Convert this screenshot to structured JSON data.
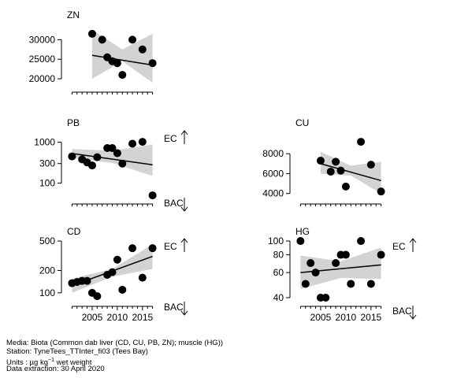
{
  "indicator_labels": {
    "ec": "EC",
    "bac": "BAC"
  },
  "footer": {
    "media": "Media: Biota (Common dab liver (CD, CU, PB, ZN); muscle (HG))",
    "station": "Station: TyneTees_TTInter_fi03 (Tees Bay)",
    "units_prefix": "Units : µg kg",
    "units_exp": "−1",
    "units_suffix": " wet weight",
    "extraction": "Data extraction: 30 April 2020"
  },
  "colors": {
    "marker": "#000000",
    "band": "#d3d3d3",
    "trend": "#000000"
  },
  "chart_data": [
    {
      "id": "zn",
      "type": "scatter",
      "title": "ZN",
      "x_range": [
        2000,
        2018
      ],
      "y_scale": "linear",
      "y_range": [
        18000,
        33500
      ],
      "y_ticks": [
        20000,
        25000,
        30000
      ],
      "y_tick_labels": [
        "20000",
        "25000",
        "30000"
      ],
      "x_ticks": [],
      "x_tick_labels": [],
      "indicators": [],
      "x": [
        2005,
        2007,
        2008,
        2009,
        2010,
        2011,
        2013,
        2015,
        2017
      ],
      "y": [
        31500,
        30000,
        25500,
        24500,
        24000,
        21000,
        30000,
        27500,
        24000
      ],
      "trend": {
        "x": [
          2005,
          2017
        ],
        "y": [
          26000,
          23500
        ]
      },
      "band": {
        "x": [
          2005,
          2011,
          2017
        ],
        "upper": [
          32500,
          27500,
          31500
        ],
        "lower": [
          20000,
          24500,
          19000
        ]
      }
    },
    {
      "id": "pb",
      "type": "scatter",
      "title": "PB",
      "x_range": [
        2000,
        2018
      ],
      "y_scale": "log",
      "y_range": [
        42,
        1600
      ],
      "y_ticks": [
        100,
        300,
        1000
      ],
      "y_tick_labels": [
        "100",
        "300",
        "1000"
      ],
      "x_ticks": [],
      "x_tick_labels": [],
      "indicators": [
        "EC",
        "BAC"
      ],
      "x": [
        2001,
        2003,
        2004,
        2005,
        2006,
        2008,
        2009,
        2010,
        2011,
        2013,
        2015,
        2017
      ],
      "y": [
        450,
        380,
        320,
        270,
        430,
        720,
        720,
        540,
        300,
        920,
        1020,
        50
      ],
      "trend": {
        "x": [
          2001,
          2017
        ],
        "y": [
          530,
          280
        ]
      },
      "band": {
        "x": [
          2001,
          2009,
          2017
        ],
        "upper": [
          680,
          620,
          880
        ],
        "lower": [
          410,
          310,
          150
        ]
      }
    },
    {
      "id": "cu",
      "type": "scatter",
      "title": "CU",
      "x_range": [
        2000,
        2018
      ],
      "y_scale": "linear",
      "y_range": [
        3500,
        10000
      ],
      "y_ticks": [
        4000,
        6000,
        8000
      ],
      "y_tick_labels": [
        "4000",
        "6000",
        "8000"
      ],
      "x_ticks": [],
      "x_tick_labels": [],
      "indicators": [],
      "x": [
        2005,
        2007,
        2008,
        2009,
        2010,
        2013,
        2015,
        2017
      ],
      "y": [
        7300,
        6200,
        7200,
        6300,
        4700,
        9200,
        6900,
        4200
      ],
      "trend": {
        "x": [
          2005,
          2017
        ],
        "y": [
          7000,
          5300
        ]
      },
      "band": {
        "x": [
          2005,
          2011,
          2017
        ],
        "upper": [
          8200,
          6800,
          7200
        ],
        "lower": [
          6000,
          5800,
          4000
        ]
      }
    },
    {
      "id": "cd",
      "type": "scatter",
      "title": "CD",
      "x_range": [
        2000,
        2018
      ],
      "y_scale": "log",
      "y_range": [
        78,
        580
      ],
      "y_ticks": [
        100,
        200,
        500
      ],
      "y_tick_labels": [
        "100",
        "200",
        "500"
      ],
      "x_ticks": [
        2005,
        2010,
        2015
      ],
      "x_tick_labels": [
        "2005",
        "2010",
        "2015"
      ],
      "indicators": [
        "EC",
        "BAC"
      ],
      "x": [
        2001,
        2002,
        2003,
        2004,
        2005,
        2006,
        2008,
        2009,
        2010,
        2011,
        2013,
        2015,
        2017
      ],
      "y": [
        135,
        140,
        145,
        145,
        100,
        90,
        175,
        190,
        280,
        110,
        400,
        160,
        400
      ],
      "trend": {
        "x": [
          2001,
          2017
        ],
        "y": [
          125,
          310
        ]
      },
      "band": {
        "x": [
          2001,
          2009,
          2017
        ],
        "upper": [
          155,
          210,
          450
        ],
        "lower": [
          100,
          165,
          210
        ]
      }
    },
    {
      "id": "hg",
      "type": "scatter",
      "title": "HG",
      "x_range": [
        2000,
        2018
      ],
      "y_scale": "log",
      "y_range": [
        38,
        108
      ],
      "y_ticks": [
        40,
        60,
        80,
        100
      ],
      "y_tick_labels": [
        "40",
        "60",
        "80",
        "100"
      ],
      "x_ticks": [
        2005,
        2010,
        2015
      ],
      "x_tick_labels": [
        "2005",
        "2010",
        "2015"
      ],
      "indicators": [
        "EC",
        "BAC"
      ],
      "x": [
        2001,
        2002,
        2003,
        2004,
        2005,
        2006,
        2008,
        2009,
        2010,
        2011,
        2013,
        2015,
        2017
      ],
      "y": [
        100,
        50,
        70,
        60,
        40,
        40,
        70,
        80,
        80,
        50,
        100,
        50,
        80
      ],
      "trend": {
        "x": [
          2001,
          2017
        ],
        "y": [
          60,
          68
        ]
      },
      "band": {
        "x": [
          2001,
          2009,
          2017
        ],
        "upper": [
          79,
          72,
          90
        ],
        "lower": [
          46,
          55,
          54
        ]
      }
    }
  ]
}
